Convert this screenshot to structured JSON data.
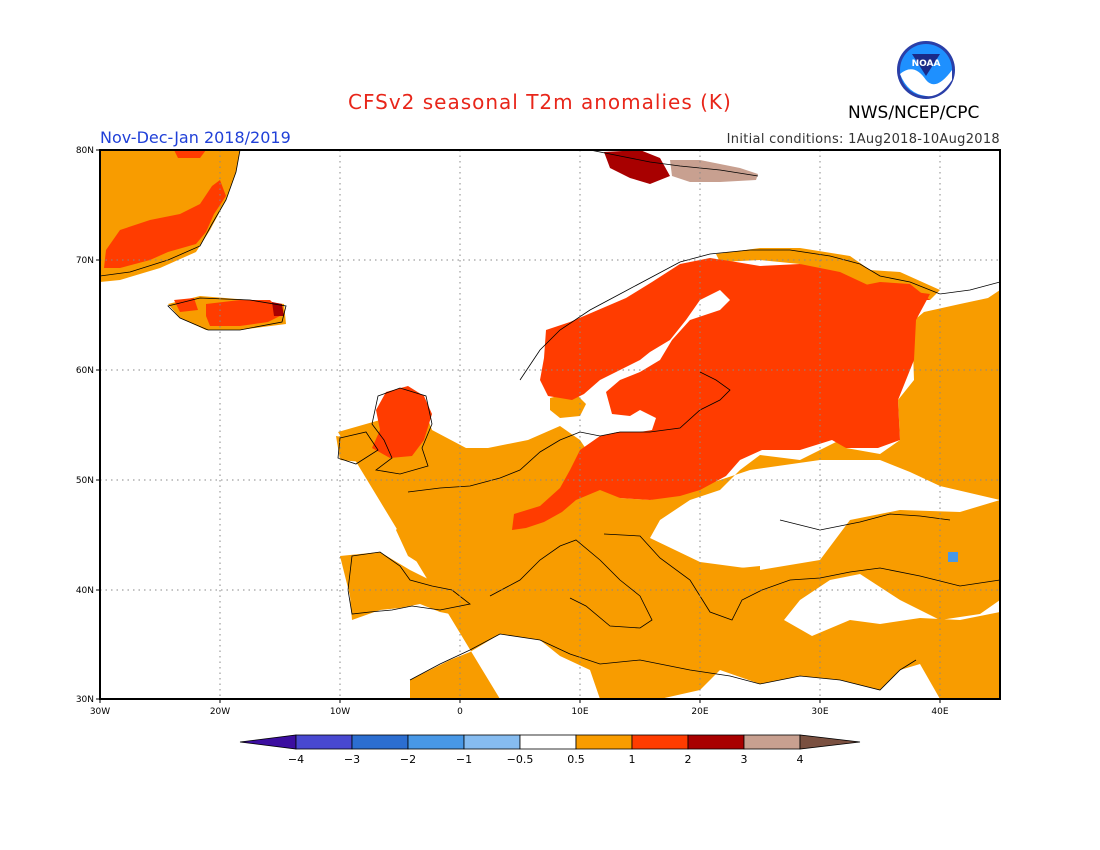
{
  "header": {
    "title": "CFSv2 seasonal T2m anomalies (K)",
    "period": "Nov-Dec-Jan 2018/2019",
    "initial_conditions": "Initial conditions: 1Aug2018-10Aug2018",
    "agency": "NWS/NCEP/CPC",
    "logo_text": "NOAA"
  },
  "map": {
    "lon_range": [
      -30,
      45
    ],
    "lat_range": [
      30,
      80
    ],
    "lat_labels": [
      "30N",
      "40N",
      "50N",
      "60N",
      "70N",
      "80N"
    ],
    "lon_labels": [
      "30W",
      "20W",
      "10W",
      "0",
      "10E",
      "20E",
      "30E",
      "40E"
    ],
    "grid": true
  },
  "legend": {
    "labels": [
      "−4",
      "−3",
      "−2",
      "−1",
      "−0.5",
      "0.5",
      "1",
      "2",
      "3",
      "4"
    ],
    "colors": [
      "#3c0ea0",
      "#4848d0",
      "#2c6ed0",
      "#4898e6",
      "#86bcf0",
      "#ffffff",
      "#f89c00",
      "#ff3c00",
      "#a80000",
      "#c8a090",
      "#7a5040"
    ]
  }
}
